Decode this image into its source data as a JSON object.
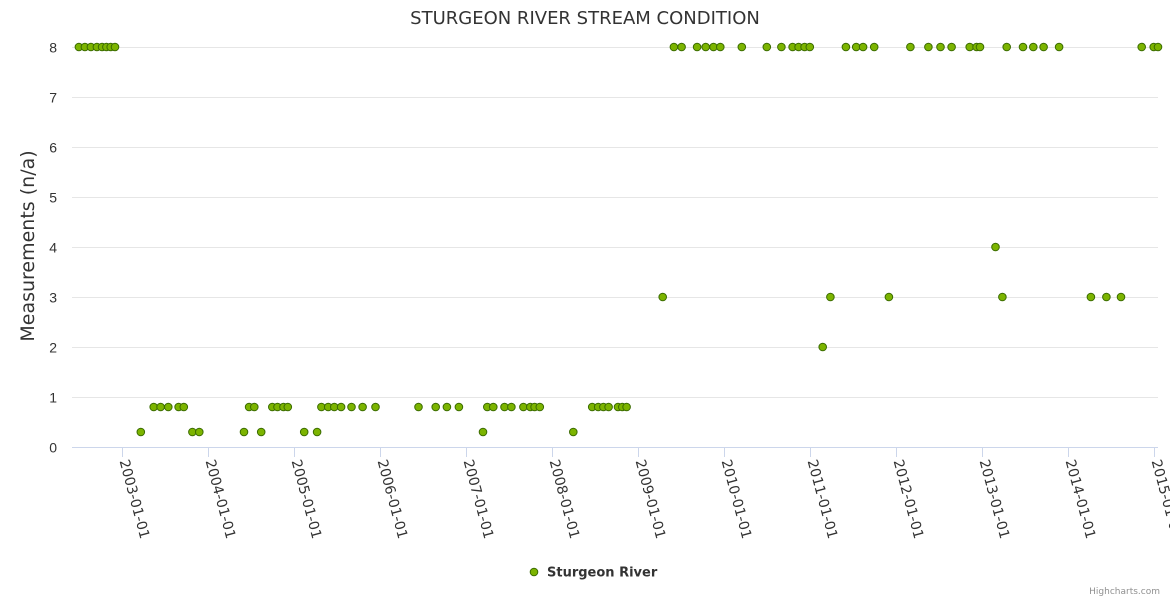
{
  "chart_data": {
    "type": "scatter",
    "title": "STURGEON RIVER STREAM CONDITION",
    "ylabel": "Measurements (n/a)",
    "xlabel": "",
    "ylim": [
      0,
      8
    ],
    "yticks": [
      "0",
      "1",
      "2",
      "3",
      "4",
      "5",
      "6",
      "7",
      "8"
    ],
    "xlim": [
      2002.42,
      2015.05
    ],
    "xticks": [
      {
        "label": "2003-01-01",
        "value": 2003.0
      },
      {
        "label": "2004-01-01",
        "value": 2004.0
      },
      {
        "label": "2005-01-01",
        "value": 2005.0
      },
      {
        "label": "2006-01-01",
        "value": 2006.0
      },
      {
        "label": "2007-01-01",
        "value": 2007.0
      },
      {
        "label": "2008-01-01",
        "value": 2008.0
      },
      {
        "label": "2009-01-01",
        "value": 2009.0
      },
      {
        "label": "2010-01-01",
        "value": 2010.0
      },
      {
        "label": "2011-01-01",
        "value": 2011.0
      },
      {
        "label": "2012-01-01",
        "value": 2012.0
      },
      {
        "label": "2013-01-01",
        "value": 2013.0
      },
      {
        "label": "2014-01-01",
        "value": 2014.0
      },
      {
        "label": "2015-01-01",
        "value": 2015.0
      }
    ],
    "grid": true,
    "legend_position": "bottom-center",
    "series": [
      {
        "name": "Sturgeon River",
        "color": "#7cb400",
        "edge_color": "#3a6b00",
        "x": [
          2002.5,
          2002.57,
          2002.64,
          2002.71,
          2002.77,
          2002.82,
          2002.87,
          2002.92,
          2003.22,
          2003.37,
          2003.45,
          2003.54,
          2003.66,
          2003.72,
          2003.82,
          2003.9,
          2004.42,
          2004.48,
          2004.54,
          2004.62,
          2004.75,
          2004.81,
          2004.88,
          2004.93,
          2005.12,
          2005.27,
          2005.32,
          2005.4,
          2005.47,
          2005.55,
          2005.67,
          2005.8,
          2005.95,
          2006.45,
          2006.65,
          2006.78,
          2006.92,
          2007.2,
          2007.25,
          2007.32,
          2007.45,
          2007.53,
          2007.67,
          2007.75,
          2007.8,
          2007.86,
          2008.25,
          2008.47,
          2008.54,
          2008.6,
          2008.66,
          2008.77,
          2008.82,
          2008.87,
          2009.29,
          2009.42,
          2009.51,
          2009.69,
          2009.79,
          2009.88,
          2009.96,
          2010.21,
          2010.5,
          2010.67,
          2010.8,
          2010.87,
          2010.94,
          2011.0,
          2011.15,
          2011.24,
          2011.42,
          2011.54,
          2011.62,
          2011.75,
          2011.92,
          2012.17,
          2012.38,
          2012.52,
          2012.65,
          2012.86,
          2012.94,
          2012.98,
          2013.16,
          2013.24,
          2013.29,
          2013.48,
          2013.6,
          2013.72,
          2013.9,
          2014.27,
          2014.45,
          2014.62,
          2014.86,
          2015.0,
          2015.05
        ],
        "y": [
          8,
          8,
          8,
          8,
          8,
          8,
          8,
          8,
          0.3,
          0.8,
          0.8,
          0.8,
          0.8,
          0.8,
          0.3,
          0.3,
          0.3,
          0.8,
          0.8,
          0.3,
          0.8,
          0.8,
          0.8,
          0.8,
          0.3,
          0.3,
          0.8,
          0.8,
          0.8,
          0.8,
          0.8,
          0.8,
          0.8,
          0.8,
          0.8,
          0.8,
          0.8,
          0.3,
          0.8,
          0.8,
          0.8,
          0.8,
          0.8,
          0.8,
          0.8,
          0.8,
          0.3,
          0.8,
          0.8,
          0.8,
          0.8,
          0.8,
          0.8,
          0.8,
          3,
          8,
          8,
          8,
          8,
          8,
          8,
          8,
          8,
          8,
          8,
          8,
          8,
          8,
          2,
          3,
          8,
          8,
          8,
          8,
          3,
          8,
          8,
          8,
          8,
          8,
          8,
          8,
          4,
          3,
          8,
          8,
          8,
          8,
          8,
          3,
          3,
          3,
          8,
          8,
          8
        ]
      }
    ]
  },
  "legend": {
    "label": "Sturgeon River"
  },
  "credits": "Highcharts.com"
}
